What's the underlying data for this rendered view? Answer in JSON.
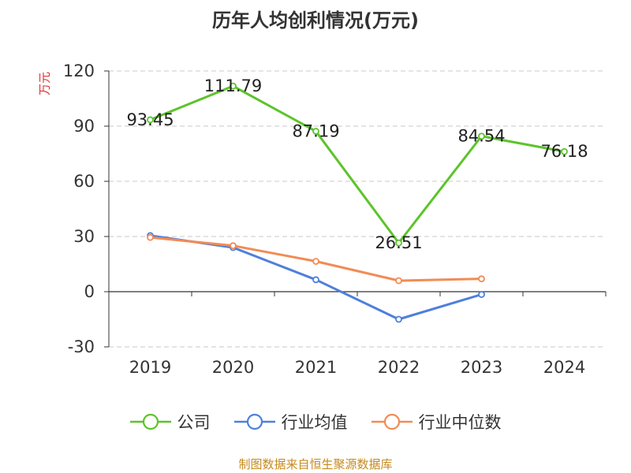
{
  "chart_data": {
    "type": "line",
    "title": "历年人均创利情况(万元)",
    "unit_label": "万元",
    "categories": [
      "2019",
      "2020",
      "2021",
      "2022",
      "2023",
      "2024"
    ],
    "ylim": [
      -30,
      120
    ],
    "yticks": [
      -30,
      0,
      30,
      60,
      90,
      120
    ],
    "grid": true,
    "legend_position": "bottom",
    "series": [
      {
        "name": "公司",
        "color": "#5cc42a",
        "values": [
          93.45,
          111.79,
          87.19,
          26.51,
          84.54,
          76.18
        ],
        "labels": [
          "93.45",
          "111.79",
          "87.19",
          "26.51",
          "84.54",
          "76.18"
        ]
      },
      {
        "name": "行业均值",
        "color": "#4e7fdc",
        "values": [
          30.5,
          24.0,
          6.5,
          -15.0,
          -1.5,
          null
        ]
      },
      {
        "name": "行业中位数",
        "color": "#f28b55",
        "values": [
          29.5,
          25.0,
          16.5,
          6.0,
          7.0,
          null
        ]
      }
    ]
  },
  "source": "制图数据来自恒生聚源数据库"
}
